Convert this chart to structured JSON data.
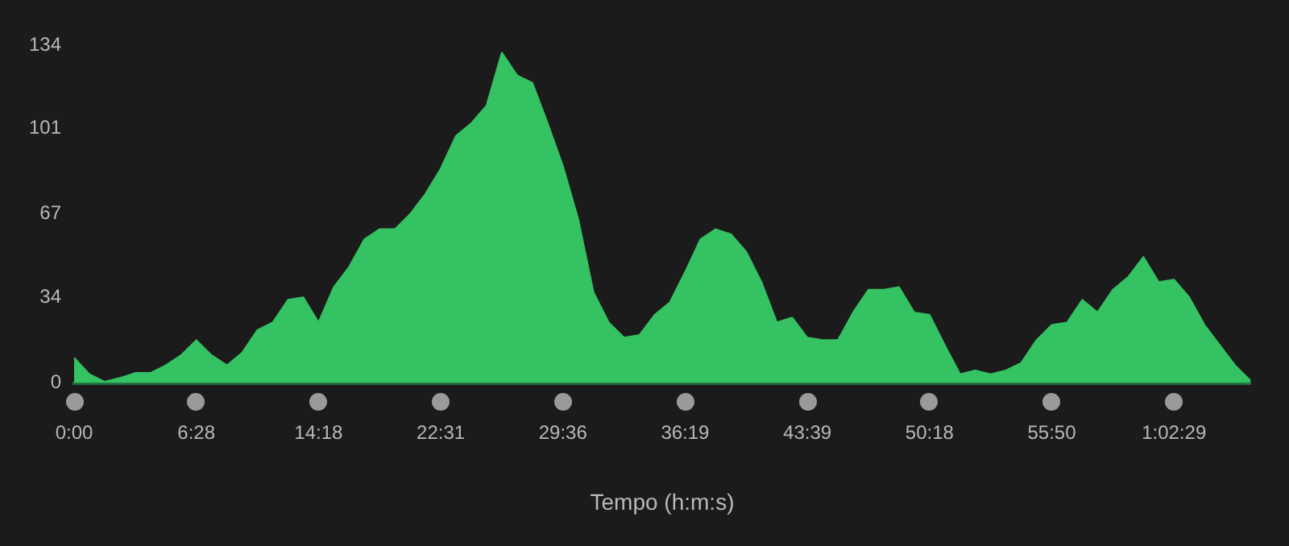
{
  "chart_data": {
    "type": "area",
    "xlabel": "Tempo (h:m:s)",
    "categories": [
      "0:00",
      null,
      null,
      null,
      null,
      null,
      null,
      null,
      "6:28",
      null,
      null,
      null,
      null,
      null,
      null,
      null,
      "14:18",
      null,
      null,
      null,
      null,
      null,
      null,
      null,
      "22:31",
      null,
      null,
      null,
      null,
      null,
      null,
      null,
      "29:36",
      null,
      null,
      null,
      null,
      null,
      null,
      null,
      "36:19",
      null,
      null,
      null,
      null,
      null,
      null,
      null,
      "43:39",
      null,
      null,
      null,
      null,
      null,
      null,
      null,
      "50:18",
      null,
      null,
      null,
      null,
      null,
      null,
      null,
      "55:50",
      null,
      null,
      null,
      null,
      null,
      null,
      null,
      "1:02:29",
      null,
      null,
      null,
      null,
      null
    ],
    "series": [
      {
        "color": "#34c262",
        "values": [
          10,
          3.5,
          0.5,
          2,
          4,
          4,
          7,
          11,
          17,
          11,
          7,
          12,
          21,
          24,
          33,
          34,
          24,
          38,
          46,
          57,
          61,
          61,
          67,
          75,
          85,
          98,
          103,
          110,
          131,
          122,
          119,
          103,
          86,
          65,
          36,
          24,
          18,
          19,
          27,
          32,
          44,
          57,
          61,
          59,
          52,
          40,
          24,
          26,
          18,
          17,
          17,
          28,
          37,
          37,
          38,
          28,
          27,
          15,
          3.5,
          5,
          3.5,
          5,
          8,
          17,
          23,
          24,
          33,
          28,
          37,
          42,
          50,
          40,
          41,
          34,
          23,
          15,
          7,
          1
        ]
      }
    ],
    "ylim": [
      0,
      134
    ],
    "yticks": [
      0,
      34,
      67,
      101,
      134
    ],
    "grid": false,
    "legend": false
  }
}
